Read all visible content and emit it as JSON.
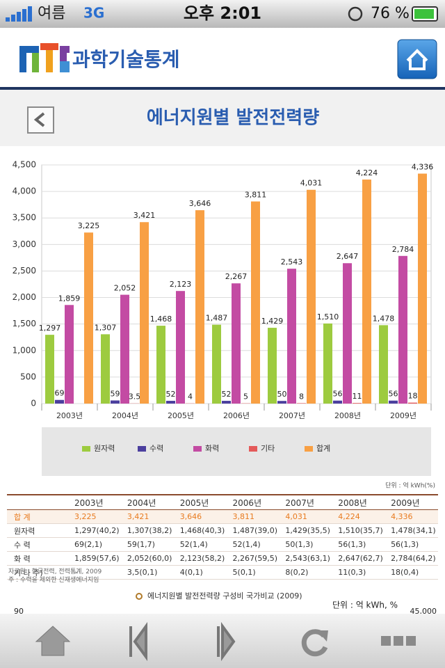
{
  "status_bar": {
    "carrier": "여름",
    "network": "3G",
    "time": "오후 2:01",
    "battery": "76 %"
  },
  "header": {
    "brand": "과학기술통계"
  },
  "page_title": "에너지원별 발전전력량",
  "chart_data": {
    "type": "bar",
    "categories": [
      "2003년",
      "2004년",
      "2005년",
      "2006년",
      "2007년",
      "2008년",
      "2009년"
    ],
    "series": [
      {
        "name": "원자력",
        "color": "#9dcb3f",
        "values": [
          1297,
          1307,
          1468,
          1487,
          1429,
          1510,
          1478
        ],
        "value_labels": [
          "1,297",
          "1,307",
          "1,468",
          "1,487",
          "1,429",
          "1,510",
          "1,478"
        ]
      },
      {
        "name": "수력",
        "color": "#4b3f9e",
        "values": [
          69,
          59,
          52,
          52,
          50,
          56,
          56
        ]
      },
      {
        "name": "화력",
        "color": "#c34ba3",
        "values": [
          1859,
          2052,
          2123,
          2267,
          2543,
          2647,
          2784
        ],
        "value_labels": [
          "1,859",
          "2,052",
          "2,123",
          "2,267",
          "2,543",
          "2,647",
          "2,784"
        ]
      },
      {
        "name": "기타",
        "color": "#e45a5a",
        "values": [
          null,
          3.5,
          4,
          5,
          8,
          11,
          18
        ]
      },
      {
        "name": "합계",
        "color": "#f8a044",
        "values": [
          3225,
          3421,
          3646,
          3811,
          4031,
          4224,
          4336
        ],
        "value_labels": [
          "3,225",
          "3,421",
          "3,646",
          "3,811",
          "4,031",
          "4,224",
          "4,336"
        ]
      }
    ],
    "ylim": [
      0,
      4500
    ],
    "yticks": [
      0,
      500,
      {
        "value": 1000,
        "label": "1,000"
      },
      {
        "value": 1500,
        "label": "1,500"
      },
      {
        "value": 2000,
        "label": "2,000"
      },
      {
        "value": 2500,
        "label": "2,500"
      },
      {
        "value": 3000,
        "label": "3,000"
      },
      {
        "value": 3500,
        "label": "3,500"
      },
      {
        "value": 4000,
        "label": "4,000"
      },
      {
        "value": 4500,
        "label": "4,500"
      }
    ],
    "grid": true,
    "legend": "bottom"
  },
  "table": {
    "unit": "단위 : 억 kWh(%)",
    "years": [
      "2003년",
      "2004년",
      "2005년",
      "2006년",
      "2007년",
      "2008년",
      "2009년"
    ],
    "rows": [
      {
        "label": "합 계",
        "cells": [
          "3,225",
          "3,421",
          "3,646",
          "3,811",
          "4,031",
          "4,224",
          "4,336"
        ]
      },
      {
        "label": "원자력",
        "cells": [
          "1,297(40,2)",
          "1,307(38,2)",
          "1,468(40,3)",
          "1,487(39,0)",
          "1,429(35,5)",
          "1,510(35,7)",
          "1,478(34,1)"
        ]
      },
      {
        "label": "수 력",
        "cells": [
          "69(2,1)",
          "59(1,7)",
          "52(1,4)",
          "52(1,4)",
          "50(1,3)",
          "56(1,3)",
          "56(1,3)"
        ]
      },
      {
        "label": "화 력",
        "cells": [
          "1,859(57,6)",
          "2,052(60,0)",
          "2,123(58,2)",
          "2,267(59,5)",
          "2,543(63,1)",
          "2,647(62,7)",
          "2,784(64,2)"
        ]
      },
      {
        "label": "기 타 주)",
        "cells": [
          "–",
          "3,5(0,1)",
          "4(0,1)",
          "5(0,1)",
          "8(0,2)",
          "11(0,3)",
          "18(0,4)"
        ]
      }
    ],
    "notes": [
      "자료원 : 한국전력, 전력통계, 2009",
      "주 : 수력을 제외한 신재생에너지임"
    ]
  },
  "next_section": {
    "title": "에너지원별 발전전력량 구성비 국가비교 (2009)",
    "unit": "단위 : 억 kWh, %",
    "left_tick": "90",
    "right_tick": "45,000"
  }
}
